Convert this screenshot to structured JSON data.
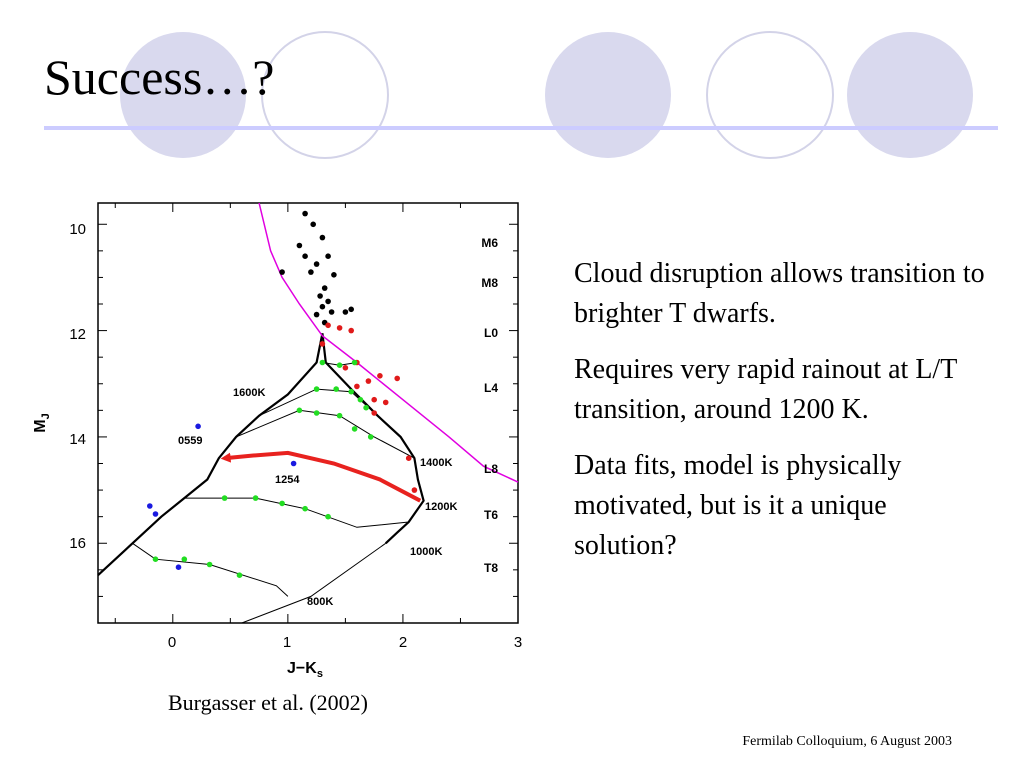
{
  "slide": {
    "title": "Success…?",
    "caption": "Burgasser et al. (2002)",
    "footer": "Fermilab Colloquium, 6 August 2003",
    "bullets": [
      "Cloud disruption allows transition to brighter T dwarfs.",
      "Requires very rapid rainout at L/T transition, around 1200 K.",
      "Data fits, model is physically motivated, but is it a unique solution?"
    ],
    "colors": {
      "circle_fill": "#d9d9ee",
      "circle_stroke": "#d3d3e8",
      "rule": "#ccccff",
      "arrow": "#e8221f",
      "magenta": "#e000e0"
    }
  },
  "chart_data": {
    "type": "scatter",
    "xlabel": "J−K",
    "xlabel_sub": "s",
    "ylabel": "M",
    "ylabel_sub": "J",
    "xlim": [
      -0.65,
      3
    ],
    "ylim": [
      17.5,
      9.6
    ],
    "x_ticks": [
      "0",
      "1",
      "2",
      "3"
    ],
    "y_ticks": [
      "10",
      "12",
      "14",
      "16"
    ],
    "spectral_types": [
      {
        "label": "M6",
        "y": 10.25
      },
      {
        "label": "M8",
        "y": 11.0
      },
      {
        "label": "L0",
        "y": 12.0
      },
      {
        "label": "L4",
        "y": 13.0
      },
      {
        "label": "L8",
        "y": 14.55
      },
      {
        "label": "T6",
        "y": 15.3
      },
      {
        "label": "T8",
        "y": 16.3
      }
    ],
    "isotherm_labels": [
      {
        "label": "1600K",
        "x": 0.55,
        "y": 13.1
      },
      {
        "label": "1400K",
        "x": 2.2,
        "y": 14.5
      },
      {
        "label": "1200K",
        "x": 2.22,
        "y": 15.15
      },
      {
        "label": "1000K",
        "x": 2.1,
        "y": 15.9
      },
      {
        "label": "800K",
        "x": 1.2,
        "y": 16.85
      }
    ],
    "object_labels": [
      {
        "label": "0559",
        "x": 0.05,
        "y": 14.0
      },
      {
        "label": "1254",
        "x": 0.95,
        "y": 14.75
      }
    ],
    "series": [
      {
        "name": "",
        "color": "#000000",
        "points": [
          [
            1.15,
            9.8
          ],
          [
            1.22,
            10.0
          ],
          [
            1.3,
            10.25
          ],
          [
            1.1,
            10.4
          ],
          [
            1.15,
            10.6
          ],
          [
            1.25,
            10.75
          ],
          [
            1.35,
            10.6
          ],
          [
            1.2,
            10.9
          ],
          [
            0.95,
            10.9
          ],
          [
            1.4,
            10.95
          ],
          [
            1.32,
            11.2
          ],
          [
            1.28,
            11.35
          ],
          [
            1.35,
            11.45
          ],
          [
            1.3,
            11.55
          ],
          [
            1.38,
            11.65
          ],
          [
            1.25,
            11.7
          ],
          [
            1.32,
            11.85
          ],
          [
            1.5,
            11.65
          ],
          [
            1.55,
            11.6
          ]
        ]
      },
      {
        "name": "",
        "color": "#e01a1a",
        "points": [
          [
            1.35,
            11.9
          ],
          [
            1.45,
            11.95
          ],
          [
            1.55,
            12.0
          ],
          [
            1.3,
            12.25
          ],
          [
            1.5,
            12.7
          ],
          [
            1.6,
            12.6
          ],
          [
            1.8,
            12.85
          ],
          [
            1.95,
            12.9
          ],
          [
            1.6,
            13.05
          ],
          [
            1.7,
            12.95
          ],
          [
            1.75,
            13.3
          ],
          [
            1.85,
            13.35
          ],
          [
            1.75,
            13.55
          ],
          [
            2.05,
            14.4
          ],
          [
            2.1,
            15.0
          ]
        ]
      },
      {
        "name": "",
        "color": "#1a1ae0",
        "points": [
          [
            0.22,
            13.8
          ],
          [
            1.05,
            14.5
          ],
          [
            -0.2,
            15.3
          ],
          [
            -0.15,
            15.45
          ],
          [
            0.05,
            16.45
          ]
        ]
      },
      {
        "name": "",
        "color": "#22dd22",
        "points": [
          [
            1.3,
            12.6
          ],
          [
            1.45,
            12.65
          ],
          [
            1.58,
            12.6
          ],
          [
            1.25,
            13.1
          ],
          [
            1.42,
            13.1
          ],
          [
            1.55,
            13.15
          ],
          [
            1.63,
            13.3
          ],
          [
            1.68,
            13.45
          ],
          [
            1.1,
            13.5
          ],
          [
            1.25,
            13.55
          ],
          [
            1.45,
            13.6
          ],
          [
            1.58,
            13.85
          ],
          [
            1.72,
            14.0
          ],
          [
            0.45,
            15.15
          ],
          [
            0.72,
            15.15
          ],
          [
            0.95,
            15.25
          ],
          [
            1.15,
            15.35
          ],
          [
            1.35,
            15.5
          ],
          [
            -0.15,
            16.3
          ],
          [
            0.1,
            16.3
          ],
          [
            0.32,
            16.4
          ],
          [
            0.58,
            16.6
          ]
        ]
      }
    ],
    "curves": [
      {
        "name": "",
        "color": "#000000",
        "points": [
          [
            1.3,
            12.05
          ],
          [
            1.33,
            12.6
          ],
          [
            1.55,
            13.1
          ],
          [
            1.78,
            13.6
          ],
          [
            1.98,
            14.0
          ],
          [
            2.1,
            14.4
          ],
          [
            2.13,
            14.8
          ],
          [
            2.18,
            15.2
          ],
          [
            2.05,
            15.6
          ],
          [
            1.95,
            15.8
          ],
          [
            1.85,
            16.0
          ]
        ]
      },
      {
        "name": "",
        "color": "#000000",
        "points": [
          [
            1.3,
            12.05
          ],
          [
            1.25,
            12.6
          ],
          [
            1.0,
            13.2
          ],
          [
            0.75,
            13.6
          ],
          [
            0.55,
            14.0
          ],
          [
            0.4,
            14.4
          ],
          [
            0.3,
            14.8
          ],
          [
            0.1,
            15.15
          ],
          [
            -0.1,
            15.5
          ],
          [
            -0.35,
            16.0
          ],
          [
            -0.65,
            16.6
          ]
        ]
      },
      {
        "name": "",
        "color": "#e000e0",
        "points": [
          [
            0.75,
            9.6
          ],
          [
            0.85,
            10.5
          ],
          [
            0.95,
            11.0
          ],
          [
            1.1,
            11.5
          ],
          [
            1.3,
            12.1
          ],
          [
            1.6,
            12.6
          ],
          [
            2.0,
            13.3
          ],
          [
            2.4,
            14.0
          ],
          [
            2.7,
            14.55
          ],
          [
            3.0,
            14.85
          ]
        ]
      },
      {
        "name": "",
        "color": "#e8221f",
        "points": [
          [
            2.15,
            15.2
          ],
          [
            1.8,
            14.8
          ],
          [
            1.4,
            14.5
          ],
          [
            1.0,
            14.3
          ],
          [
            0.7,
            14.35
          ],
          [
            0.45,
            14.4
          ]
        ]
      }
    ]
  }
}
